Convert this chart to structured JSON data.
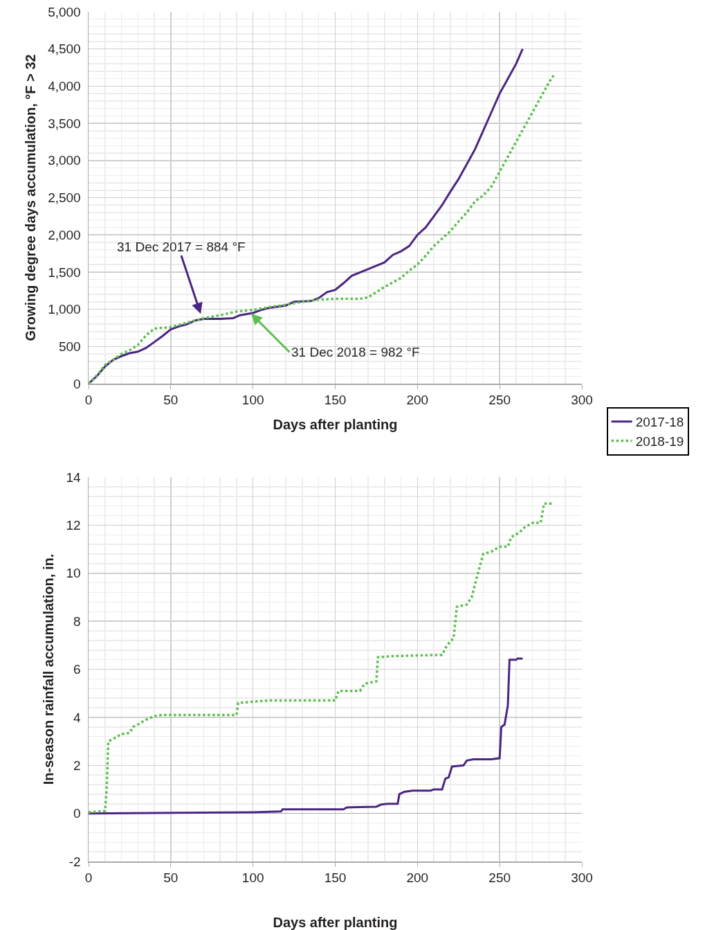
{
  "chart_data": [
    {
      "type": "line",
      "xlabel": "Days after planting",
      "ylabel": "Growing degree days accumulation, °F > 32",
      "xlim": [
        0,
        300
      ],
      "xticks": [
        0,
        50,
        100,
        150,
        200,
        250,
        300
      ],
      "ylim": [
        0,
        5000
      ],
      "yticks": [
        0,
        500,
        {
          "value": 1000,
          "label": "1,000"
        },
        {
          "value": 1500,
          "label": "1,500"
        },
        {
          "value": 2000,
          "label": "2,000"
        },
        {
          "value": 2500,
          "label": "2,500"
        },
        {
          "value": 3000,
          "label": "3,000"
        },
        {
          "value": 3500,
          "label": "3,500"
        },
        {
          "value": 4000,
          "label": "4,000"
        },
        {
          "value": 4500,
          "label": "4,500"
        },
        {
          "value": 5000,
          "label": "5,000"
        }
      ],
      "grid": true,
      "legend": "bottom right",
      "marker": "none",
      "annotations": [
        {
          "text": "31 Dec 2017 = 884 °F",
          "x": 69,
          "y": 884
        },
        {
          "text": "31 Dec 2018 = 982 °F",
          "x": 97,
          "y": 982
        }
      ],
      "series": [
        {
          "name": "2017-18",
          "color": "#4b2582",
          "line_style": "solid",
          "x": [
            0,
            5,
            10,
            15,
            20,
            25,
            30,
            35,
            40,
            45,
            50,
            55,
            60,
            65,
            70,
            80,
            88,
            92,
            100,
            105,
            110,
            120,
            125,
            135,
            140,
            145,
            150,
            155,
            160,
            170,
            180,
            185,
            190,
            195,
            200,
            205,
            210,
            215,
            220,
            225,
            230,
            235,
            240,
            245,
            250,
            255,
            260,
            264
          ],
          "values": [
            0,
            100,
            230,
            320,
            370,
            410,
            430,
            480,
            560,
            640,
            730,
            770,
            800,
            850,
            870,
            870,
            880,
            920,
            950,
            990,
            1020,
            1050,
            1100,
            1110,
            1150,
            1230,
            1260,
            1350,
            1450,
            1540,
            1630,
            1730,
            1780,
            1850,
            2000,
            2100,
            2250,
            2400,
            2580,
            2750,
            2950,
            3150,
            3400,
            3650,
            3900,
            4100,
            4300,
            4500
          ]
        },
        {
          "name": "2018-19",
          "color": "#5cbf4f",
          "line_style": "dotted",
          "x": [
            0,
            5,
            10,
            15,
            20,
            25,
            30,
            35,
            40,
            50,
            60,
            70,
            80,
            90,
            100,
            110,
            120,
            130,
            140,
            150,
            165,
            170,
            180,
            190,
            195,
            200,
            205,
            210,
            215,
            220,
            225,
            230,
            235,
            240,
            245,
            250,
            255,
            260,
            265,
            270,
            275,
            280,
            283
          ],
          "values": [
            0,
            110,
            250,
            320,
            400,
            450,
            520,
            650,
            740,
            760,
            820,
            880,
            920,
            970,
            990,
            1030,
            1060,
            1100,
            1130,
            1140,
            1140,
            1160,
            1300,
            1420,
            1520,
            1600,
            1720,
            1850,
            1950,
            2050,
            2180,
            2300,
            2450,
            2530,
            2650,
            2850,
            3050,
            3250,
            3450,
            3650,
            3850,
            4050,
            4150
          ]
        }
      ]
    },
    {
      "type": "line",
      "xlabel": "Days after planting",
      "ylabel": "In-season rainfall accumulation, in.",
      "xlim": [
        0,
        300
      ],
      "xticks": [
        0,
        50,
        100,
        150,
        200,
        250,
        300
      ],
      "ylim": [
        -2,
        14
      ],
      "yticks": [
        -2,
        0,
        2,
        4,
        6,
        8,
        10,
        12,
        14
      ],
      "grid": true,
      "marker": "none",
      "series": [
        {
          "color": "#4b2582",
          "line_style": "solid",
          "x": [
            0,
            100,
            117,
            118,
            155,
            157,
            175,
            178,
            182,
            188,
            189,
            192,
            197,
            208,
            210,
            215,
            217,
            219,
            221,
            228,
            230,
            234,
            245,
            250,
            251,
            253,
            255,
            256,
            260,
            261,
            264
          ],
          "values": [
            0,
            0.05,
            0.08,
            0.17,
            0.17,
            0.25,
            0.28,
            0.37,
            0.4,
            0.4,
            0.8,
            0.9,
            0.95,
            0.95,
            1.0,
            1.0,
            1.45,
            1.5,
            1.95,
            2.0,
            2.2,
            2.25,
            2.25,
            2.3,
            3.6,
            3.7,
            4.5,
            6.4,
            6.4,
            6.45,
            6.45
          ]
        },
        {
          "color": "#5cbf4f",
          "line_style": "dotted",
          "x": [
            0,
            10,
            11,
            12,
            15,
            20,
            25,
            27,
            30,
            35,
            40,
            45,
            90,
            91,
            100,
            110,
            150,
            152,
            165,
            168,
            175,
            176,
            185,
            215,
            218,
            222,
            224,
            230,
            233,
            236,
            240,
            245,
            250,
            255,
            257,
            262,
            265,
            270,
            275,
            277,
            283
          ],
          "values": [
            0.05,
            0.1,
            1,
            3.0,
            3.1,
            3.3,
            3.35,
            3.6,
            3.7,
            3.9,
            4.05,
            4.1,
            4.1,
            4.6,
            4.65,
            4.7,
            4.7,
            5.1,
            5.1,
            5.4,
            5.5,
            6.5,
            6.55,
            6.6,
            7.0,
            7.3,
            8.6,
            8.7,
            9.0,
            9.8,
            10.8,
            10.9,
            11.1,
            11.1,
            11.5,
            11.7,
            11.9,
            12.1,
            12.1,
            12.9,
            12.9
          ]
        }
      ]
    }
  ]
}
